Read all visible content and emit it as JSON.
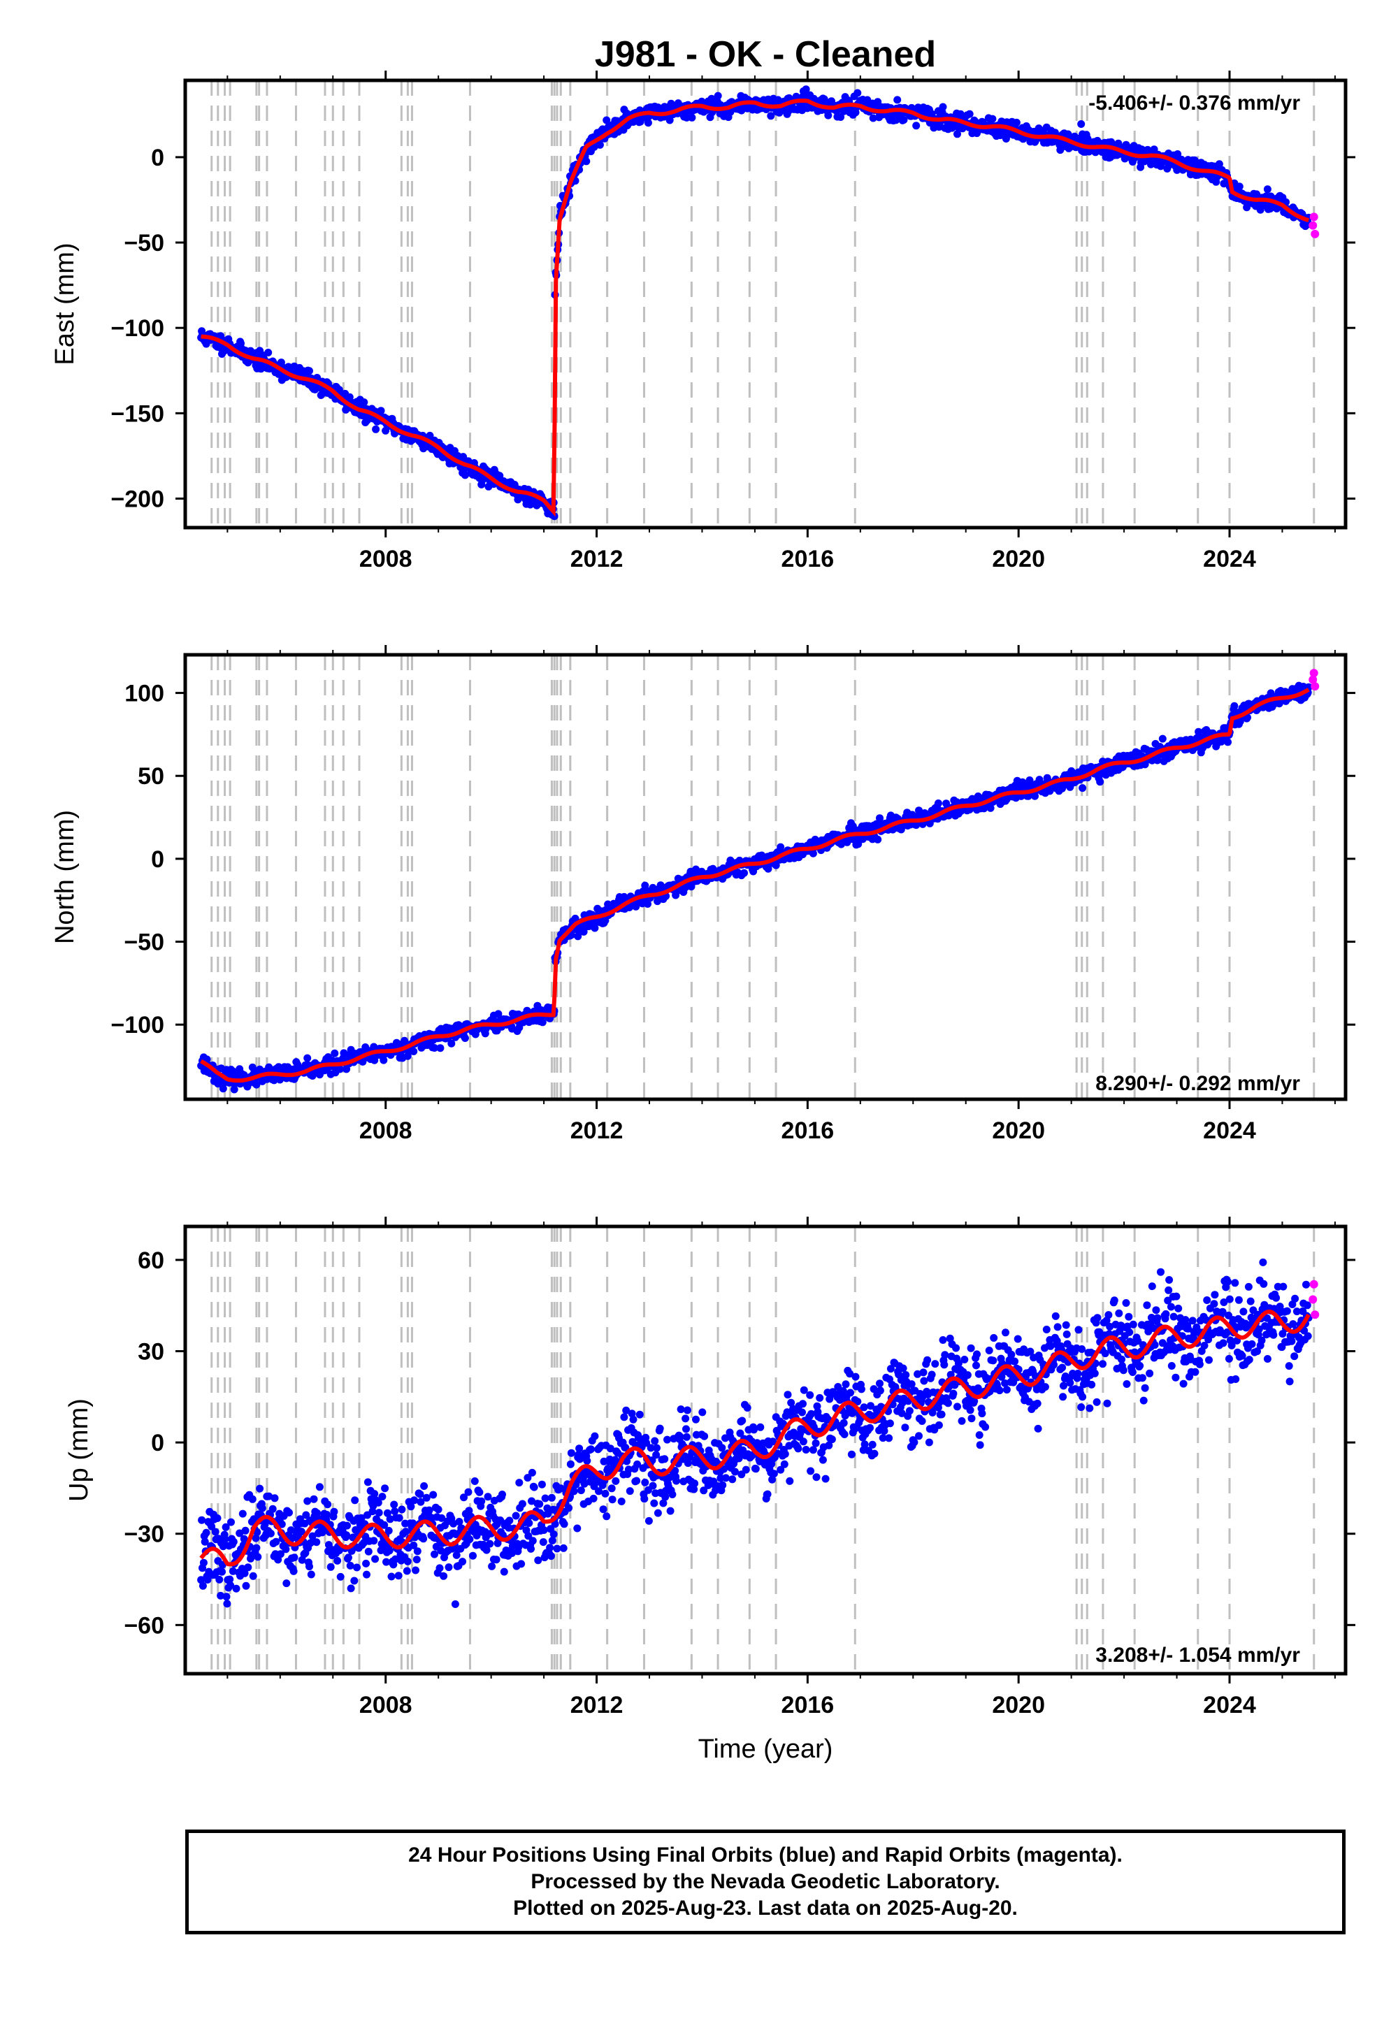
{
  "title": "J981  - OK - Cleaned",
  "xlabel": "Time (year)",
  "footer": {
    "line1": "24 Hour Positions Using Final Orbits (blue) and Rapid Orbits (magenta).",
    "line2": "Processed by the Nevada Geodetic Laboratory.",
    "line3": "Plotted on 2025-Aug-23. Last data on 2025-Aug-20."
  },
  "colors": {
    "final": "#0000ff",
    "rapid": "#ff00ff",
    "model": "#ff0000",
    "events": "#bfbfbf"
  },
  "chart_data": [
    {
      "type": "scatter",
      "ylabel": "East (mm)",
      "rate": "-5.406+/- 0.376 mm/yr",
      "rate_position": "top-right",
      "xlim": [
        2004.2,
        2026.2
      ],
      "ylim": [
        -217,
        45
      ],
      "xticks": [
        2008,
        2012,
        2016,
        2020,
        2024
      ],
      "yticks": [
        0,
        -50,
        -100,
        -150,
        -200
      ],
      "series": [
        {
          "x": [
            2004.5,
            2005.0,
            2005.5,
            2006.0,
            2006.5,
            2007.0,
            2007.5,
            2008.0,
            2008.5,
            2009.0,
            2009.5,
            2010.0,
            2010.5,
            2011.0,
            2011.2,
            2011.21,
            2011.3,
            2011.5,
            2011.8,
            2012.2,
            2012.6,
            2013.0,
            2013.5,
            2014.0,
            2014.5,
            2015.0,
            2015.5,
            2016.0,
            2016.5,
            2017.0,
            2017.5,
            2018.0,
            2018.5,
            2019.0,
            2019.5,
            2020.0,
            2020.5,
            2021.0,
            2021.5,
            2022.0,
            2022.5,
            2023.0,
            2023.5,
            2024.0,
            2024.05,
            2024.5,
            2025.0,
            2025.5
          ],
          "y": [
            -105,
            -110,
            -118,
            -124,
            -130,
            -137,
            -148,
            -155,
            -163,
            -170,
            -180,
            -188,
            -196,
            -201,
            -207,
            -80,
            -35,
            -15,
            5,
            15,
            22,
            26,
            27,
            30,
            29,
            32,
            30,
            33,
            29,
            30,
            27,
            26,
            22,
            20,
            18,
            15,
            12,
            9,
            6,
            3,
            1,
            -3,
            -8,
            -12,
            -20,
            -25,
            -28,
            -37
          ]
        }
      ],
      "rapid": {
        "x": [
          2025.58,
          2025.6,
          2025.62
        ],
        "y": [
          -40,
          -35,
          -45
        ]
      }
    },
    {
      "type": "scatter",
      "ylabel": "North (mm)",
      "rate": "8.290+/- 0.292 mm/yr",
      "rate_position": "bottom-right",
      "xlim": [
        2004.2,
        2026.2
      ],
      "ylim": [
        -145,
        123
      ],
      "xticks": [
        2008,
        2012,
        2016,
        2020,
        2024
      ],
      "yticks": [
        100,
        50,
        0,
        -50,
        -100
      ],
      "series": [
        {
          "x": [
            2004.5,
            2004.8,
            2005.0,
            2005.5,
            2006.0,
            2006.5,
            2007.0,
            2007.5,
            2008.0,
            2008.5,
            2009.0,
            2009.5,
            2010.0,
            2010.5,
            2011.0,
            2011.2,
            2011.21,
            2011.3,
            2011.6,
            2012.0,
            2012.5,
            2013.0,
            2013.5,
            2014.0,
            2014.5,
            2015.0,
            2015.5,
            2016.0,
            2016.5,
            2017.0,
            2017.5,
            2018.0,
            2018.5,
            2019.0,
            2019.5,
            2020.0,
            2020.5,
            2021.0,
            2021.5,
            2022.0,
            2022.5,
            2023.0,
            2023.5,
            2024.0,
            2024.05,
            2024.5,
            2025.0,
            2025.5
          ],
          "y": [
            -122,
            -130,
            -133,
            -132,
            -130,
            -128,
            -124,
            -120,
            -116,
            -112,
            -107,
            -103,
            -100,
            -97,
            -94,
            -93,
            -62,
            -48,
            -40,
            -35,
            -28,
            -22,
            -17,
            -11,
            -7,
            -3,
            2,
            6,
            11,
            15,
            19,
            23,
            27,
            32,
            36,
            40,
            44,
            48,
            54,
            58,
            62,
            67,
            71,
            75,
            85,
            92,
            97,
            102
          ]
        }
      ],
      "rapid": {
        "x": [
          2025.58,
          2025.6,
          2025.62
        ],
        "y": [
          108,
          112,
          104
        ]
      }
    },
    {
      "type": "scatter",
      "ylabel": "Up (mm)",
      "rate": "3.208+/- 1.054 mm/yr",
      "rate_position": "bottom-right",
      "xlim": [
        2004.2,
        2026.2
      ],
      "ylim": [
        -76,
        71
      ],
      "xticks": [
        2008,
        2012,
        2016,
        2020,
        2024
      ],
      "yticks": [
        60,
        30,
        0,
        -30,
        -60
      ],
      "series": [
        {
          "x": [
            2004.5,
            2005.0,
            2005.5,
            2006.0,
            2006.5,
            2007.0,
            2007.5,
            2008.0,
            2008.5,
            2009.0,
            2009.5,
            2010.0,
            2010.5,
            2011.0,
            2011.5,
            2012.0,
            2012.5,
            2013.0,
            2013.5,
            2014.0,
            2014.5,
            2015.0,
            2015.5,
            2016.0,
            2016.5,
            2017.0,
            2017.5,
            2018.0,
            2018.5,
            2019.0,
            2019.5,
            2020.0,
            2020.5,
            2021.0,
            2021.5,
            2022.0,
            2022.5,
            2023.0,
            2023.5,
            2024.0,
            2024.5,
            2025.0,
            2025.5
          ],
          "y": [
            -38,
            -40,
            -28,
            -29,
            -30,
            -30,
            -31,
            -31,
            -30,
            -30,
            -29,
            -28,
            -28,
            -26,
            -14,
            -10,
            -5,
            -7,
            -6,
            -5,
            -4,
            -3,
            2,
            5,
            8,
            10,
            12,
            14,
            16,
            18,
            20,
            22,
            24,
            27,
            30,
            31,
            33,
            35,
            36,
            38,
            39,
            39,
            42
          ]
        }
      ],
      "rapid": {
        "x": [
          2025.58,
          2025.6,
          2025.62
        ],
        "y": [
          47,
          52,
          42
        ]
      }
    }
  ],
  "event_years": [
    2004.7,
    2004.82,
    2004.95,
    2005.05,
    2005.55,
    2005.6,
    2005.75,
    2006.3,
    2006.85,
    2007.0,
    2007.2,
    2007.5,
    2008.3,
    2008.42,
    2008.5,
    2009.6,
    2011.15,
    2011.2,
    2011.25,
    2011.32,
    2011.5,
    2012.2,
    2012.9,
    2013.8,
    2014.3,
    2014.9,
    2015.4,
    2016.9,
    2021.1,
    2021.2,
    2021.3,
    2021.6,
    2022.2,
    2023.4,
    2024.0,
    2025.6
  ]
}
